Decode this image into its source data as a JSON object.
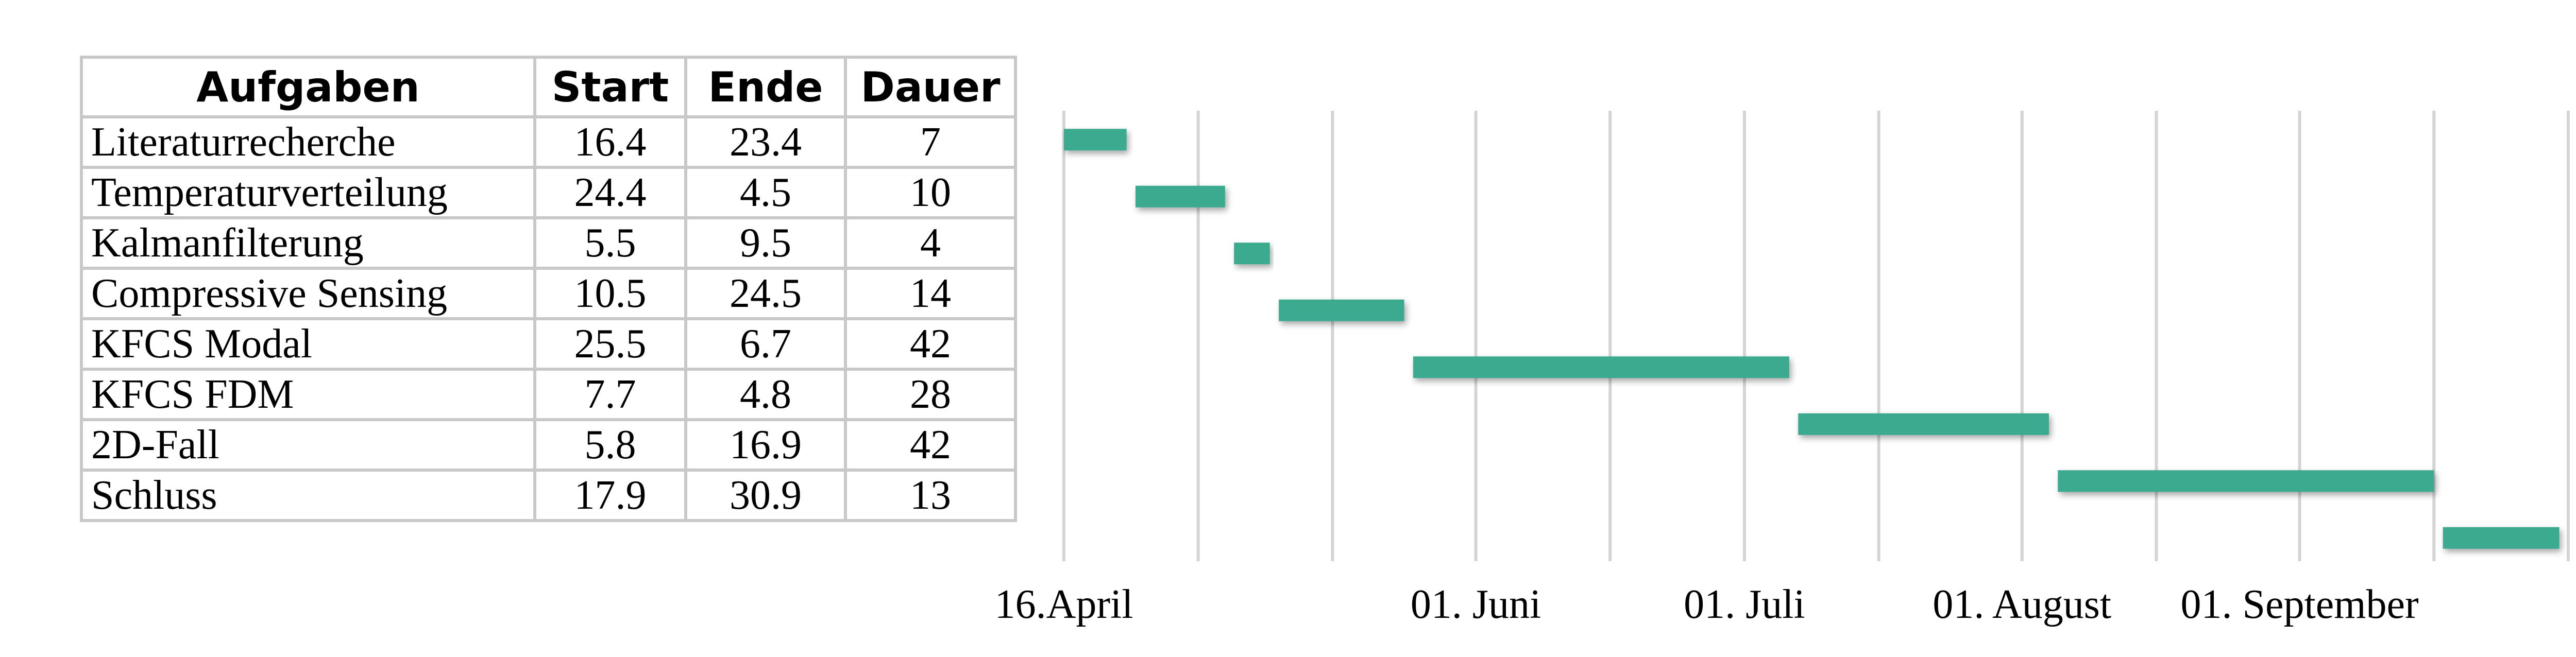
{
  "table": {
    "headers": [
      "Aufgaben",
      "Start",
      "Ende",
      "Dauer"
    ],
    "rows": [
      {
        "task": "Literaturrecherche",
        "start": "16.4",
        "end": "23.4",
        "duration": "7"
      },
      {
        "task": "Temperaturverteilung",
        "start": "24.4",
        "end": "4.5",
        "duration": "10"
      },
      {
        "task": "Kalmanfilterung",
        "start": "5.5",
        "end": "9.5",
        "duration": "4"
      },
      {
        "task": "Compressive Sensing",
        "start": "10.5",
        "end": "24.5",
        "duration": "14"
      },
      {
        "task": "KFCS Modal",
        "start": "25.5",
        "end": "6.7",
        "duration": "42"
      },
      {
        "task": "KFCS FDM",
        "start": "7.7",
        "end": "4.8",
        "duration": "28"
      },
      {
        "task": "2D-Fall",
        "start": "5.8",
        "end": "16.9",
        "duration": "42"
      },
      {
        "task": "Schluss",
        "start": "17.9",
        "end": "30.9",
        "duration": "13"
      }
    ]
  },
  "chart_data": {
    "type": "bar",
    "orientation": "horizontal-gantt",
    "bar_color": "#3aaa8f",
    "grid": true,
    "x_axis": {
      "tick_labels": [
        "16.April",
        "01. Juni",
        "01. Juli",
        "01. August",
        "01. September"
      ],
      "tick_dates": [
        "04-16",
        "06-01",
        "07-01",
        "08-01",
        "09-01"
      ],
      "range": [
        "04-16",
        "10-01"
      ]
    },
    "gridline_dates": [
      "04-16",
      "05-01",
      "05-16",
      "06-01",
      "06-16",
      "07-01",
      "07-16",
      "08-01",
      "08-16",
      "09-01",
      "09-16",
      "10-01"
    ],
    "tasks": [
      {
        "name": "Literaturrecherche",
        "start": "04-16",
        "end": "04-23"
      },
      {
        "name": "Temperaturverteilung",
        "start": "04-24",
        "end": "05-04"
      },
      {
        "name": "Kalmanfilterung",
        "start": "05-05",
        "end": "05-09"
      },
      {
        "name": "Compressive Sensing",
        "start": "05-10",
        "end": "05-24"
      },
      {
        "name": "KFCS Modal",
        "start": "05-25",
        "end": "07-06"
      },
      {
        "name": "KFCS FDM",
        "start": "07-07",
        "end": "08-04"
      },
      {
        "name": "2D-Fall",
        "start": "08-05",
        "end": "09-16"
      },
      {
        "name": "Schluss",
        "start": "09-17",
        "end": "09-30"
      }
    ]
  }
}
